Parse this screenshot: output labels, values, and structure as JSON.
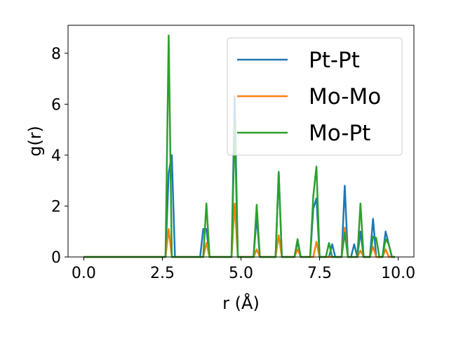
{
  "chart_data": {
    "type": "line",
    "xlabel": "r (Å)",
    "ylabel": "g(r)",
    "xlim": [
      -0.5,
      10.5
    ],
    "ylim": [
      0,
      9.1
    ],
    "xticks": [
      0.0,
      2.5,
      5.0,
      7.5,
      10.0
    ],
    "xtick_labels": [
      "0.0",
      "2.5",
      "5.0",
      "7.5",
      "10.0"
    ],
    "yticks": [
      0,
      2,
      4,
      6,
      8
    ],
    "ytick_labels": [
      "0",
      "2",
      "4",
      "6",
      "8"
    ],
    "grid": false,
    "legend_position": "top-right",
    "x": [
      0.0,
      0.1,
      0.2,
      0.3,
      0.4,
      0.5,
      0.6,
      0.7,
      0.8,
      0.9,
      1.0,
      1.1,
      1.2,
      1.3,
      1.4,
      1.5,
      1.6,
      1.7,
      1.8,
      1.9,
      2.0,
      2.1,
      2.2,
      2.3,
      2.4,
      2.5,
      2.6,
      2.7,
      2.8,
      2.9,
      3.0,
      3.1,
      3.2,
      3.3,
      3.4,
      3.5,
      3.6,
      3.7,
      3.8,
      3.9,
      4.0,
      4.1,
      4.2,
      4.3,
      4.4,
      4.5,
      4.6,
      4.7,
      4.8,
      4.9,
      5.0,
      5.1,
      5.2,
      5.3,
      5.4,
      5.5,
      5.6,
      5.7,
      5.8,
      5.9,
      6.0,
      6.1,
      6.2,
      6.3,
      6.4,
      6.5,
      6.6,
      6.7,
      6.8,
      6.9,
      7.0,
      7.1,
      7.2,
      7.3,
      7.4,
      7.5,
      7.6,
      7.7,
      7.8,
      7.9,
      8.0,
      8.1,
      8.2,
      8.3,
      8.4,
      8.5,
      8.6,
      8.7,
      8.8,
      8.9,
      9.0,
      9.1,
      9.2,
      9.3,
      9.4,
      9.5,
      9.6,
      9.7,
      9.8,
      9.9
    ],
    "series": [
      {
        "name": "Pt-Pt",
        "color": "#1f77b4",
        "values": [
          0,
          0,
          0,
          0,
          0,
          0,
          0,
          0,
          0,
          0,
          0,
          0,
          0,
          0,
          0,
          0,
          0,
          0,
          0,
          0,
          0,
          0,
          0,
          0,
          0,
          0,
          0,
          3.3,
          4.0,
          0,
          0,
          0,
          0,
          0,
          0,
          0,
          0,
          0,
          1.1,
          1.1,
          0,
          0,
          0,
          0,
          0,
          0,
          0,
          0,
          6.3,
          0,
          0,
          0,
          0,
          0,
          0,
          1.6,
          0,
          0,
          0,
          0,
          0,
          0,
          3.3,
          0,
          0,
          0,
          0,
          0,
          0.6,
          0,
          0,
          0,
          0,
          1.9,
          2.3,
          0,
          0,
          0,
          0,
          0.5,
          0,
          0,
          0,
          2.8,
          0,
          0,
          0.5,
          0,
          1.0,
          0,
          0,
          0,
          1.5,
          0,
          0,
          0,
          1.0,
          0.5,
          0,
          0
        ]
      },
      {
        "name": "Mo-Mo",
        "color": "#ff7f0e",
        "values": [
          0,
          0,
          0,
          0,
          0,
          0,
          0,
          0,
          0,
          0,
          0,
          0,
          0,
          0,
          0,
          0,
          0,
          0,
          0,
          0,
          0,
          0,
          0,
          0,
          0,
          0,
          0,
          1.1,
          0,
          0,
          0,
          0,
          0,
          0,
          0,
          0,
          0,
          0,
          0,
          0.55,
          0,
          0,
          0,
          0,
          0,
          0,
          0,
          0,
          2.1,
          0,
          0,
          0,
          0,
          0,
          0,
          0.3,
          0,
          0,
          0,
          0,
          0,
          0,
          0.85,
          0,
          0,
          0,
          0,
          0,
          0.3,
          0,
          0,
          0,
          0,
          0,
          0.6,
          0,
          0,
          0,
          0,
          0,
          0,
          0,
          0,
          1.15,
          0,
          0,
          0,
          0,
          0.25,
          0,
          0,
          0,
          0.4,
          0,
          0,
          0,
          0.3,
          0,
          0,
          0
        ]
      },
      {
        "name": "Mo-Pt",
        "color": "#2ca02c",
        "values": [
          0,
          0,
          0,
          0,
          0,
          0,
          0,
          0,
          0,
          0,
          0,
          0,
          0,
          0,
          0,
          0,
          0,
          0,
          0,
          0,
          0,
          0,
          0,
          0,
          0,
          0,
          0,
          8.7,
          0,
          0,
          0,
          0,
          0,
          0,
          0,
          0,
          0,
          0,
          0,
          2.1,
          0,
          0,
          0,
          0,
          0,
          0,
          0,
          0,
          5.2,
          0,
          0,
          0,
          0,
          0,
          0,
          2.05,
          0,
          0,
          0,
          0,
          0,
          0,
          3.35,
          0,
          0,
          0,
          0,
          0,
          0.7,
          0,
          0,
          0,
          0,
          2.4,
          3.55,
          0,
          0,
          0,
          0.55,
          0,
          0,
          0,
          0,
          0.95,
          0,
          0,
          0,
          0,
          2.1,
          0,
          0,
          0,
          0.8,
          0.75,
          0,
          0,
          0.7,
          0.5,
          0,
          0
        ]
      }
    ]
  }
}
